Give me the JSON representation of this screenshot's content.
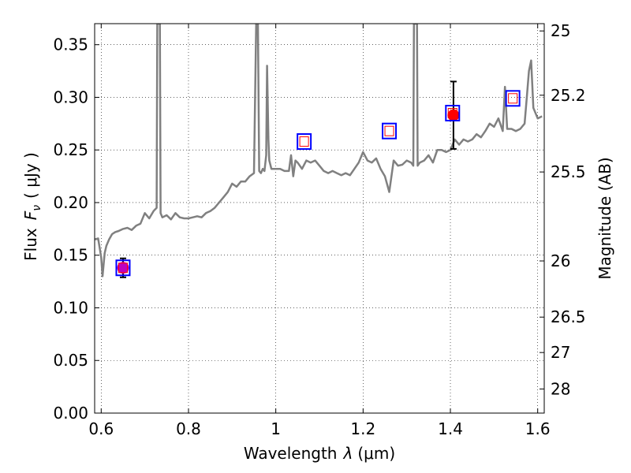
{
  "chart_data": {
    "type": "line",
    "xlabel_text": "Wavelength",
    "xlabel_math": "λ",
    "xlabel_unit": "(μm)",
    "ylabel_text": "Flux",
    "ylabel_math": "F",
    "ylabel_sub": "ν",
    "ylabel_unit": "( μJy )",
    "y2label": "Magnitude (AB)",
    "xlim": [
      0.585,
      1.615
    ],
    "ylim": [
      0.0,
      0.37
    ],
    "grid": true,
    "grid_style": "dotted",
    "x_ticks": [
      0.6,
      0.8,
      1.0,
      1.2,
      1.4,
      1.6
    ],
    "x_tick_labels": [
      "0.6",
      "0.8",
      "1",
      "1.2",
      "1.4",
      "1.6"
    ],
    "y_ticks": [
      0.0,
      0.05,
      0.1,
      0.15,
      0.2,
      0.25,
      0.3,
      0.35
    ],
    "y_tick_labels": [
      "0.00",
      "0.05",
      "0.10",
      "0.15",
      "0.20",
      "0.25",
      "0.30",
      "0.35"
    ],
    "y2_ticks": [
      25,
      25.2,
      25.5,
      26,
      26.5,
      27,
      28
    ],
    "y2_tick_labels": [
      "25",
      "25.2",
      "25.5",
      "26",
      "26.5",
      "27",
      "28"
    ],
    "colors": {
      "spectrum": "#808080",
      "model_marker_edge": "#0000ff",
      "inner_marker_edge": "#ff0000",
      "photometry_red": "#ff0000",
      "photometry_magenta": "#bf00bf",
      "errorbar": "#000000"
    },
    "spectrum": {
      "name": "",
      "x": [
        0.585,
        0.593,
        0.6,
        0.603,
        0.608,
        0.612,
        0.618,
        0.625,
        0.632,
        0.64,
        0.65,
        0.66,
        0.67,
        0.68,
        0.69,
        0.7,
        0.71,
        0.72,
        0.727,
        0.7285,
        0.729,
        0.733,
        0.7345,
        0.736,
        0.74,
        0.75,
        0.76,
        0.77,
        0.78,
        0.79,
        0.8,
        0.81,
        0.82,
        0.83,
        0.84,
        0.85,
        0.86,
        0.87,
        0.88,
        0.89,
        0.9,
        0.91,
        0.92,
        0.93,
        0.94,
        0.95,
        0.955,
        0.956,
        0.958,
        0.959,
        0.962,
        0.966,
        0.97,
        0.974,
        0.978,
        0.98,
        0.983,
        0.985,
        0.99,
        1.0,
        1.01,
        1.02,
        1.03,
        1.035,
        1.04,
        1.045,
        1.05,
        1.06,
        1.07,
        1.08,
        1.09,
        1.1,
        1.11,
        1.12,
        1.13,
        1.14,
        1.15,
        1.16,
        1.17,
        1.18,
        1.19,
        1.2,
        1.21,
        1.22,
        1.23,
        1.24,
        1.25,
        1.26,
        1.27,
        1.28,
        1.29,
        1.3,
        1.31,
        1.315,
        1.3165,
        1.317,
        1.322,
        1.3235,
        1.325,
        1.33,
        1.34,
        1.35,
        1.36,
        1.37,
        1.38,
        1.39,
        1.4,
        1.41,
        1.42,
        1.43,
        1.44,
        1.45,
        1.46,
        1.47,
        1.48,
        1.49,
        1.5,
        1.51,
        1.52,
        1.525,
        1.53,
        1.54,
        1.55,
        1.56,
        1.57,
        1.575,
        1.58,
        1.585,
        1.59,
        1.6,
        1.61
      ],
      "y": [
        0.165,
        0.166,
        0.148,
        0.13,
        0.152,
        0.159,
        0.165,
        0.17,
        0.172,
        0.173,
        0.175,
        0.176,
        0.174,
        0.178,
        0.18,
        0.19,
        0.185,
        0.192,
        0.195,
        0.37,
        0.37,
        0.37,
        0.37,
        0.19,
        0.186,
        0.188,
        0.184,
        0.19,
        0.186,
        0.185,
        0.185,
        0.186,
        0.187,
        0.186,
        0.19,
        0.192,
        0.195,
        0.2,
        0.205,
        0.21,
        0.218,
        0.215,
        0.22,
        0.22,
        0.225,
        0.228,
        0.37,
        0.37,
        0.37,
        0.37,
        0.23,
        0.228,
        0.232,
        0.23,
        0.245,
        0.33,
        0.26,
        0.24,
        0.232,
        0.232,
        0.232,
        0.23,
        0.23,
        0.245,
        0.225,
        0.24,
        0.238,
        0.232,
        0.24,
        0.238,
        0.24,
        0.235,
        0.23,
        0.228,
        0.23,
        0.228,
        0.226,
        0.228,
        0.226,
        0.232,
        0.238,
        0.248,
        0.24,
        0.238,
        0.242,
        0.232,
        0.225,
        0.21,
        0.24,
        0.235,
        0.236,
        0.24,
        0.238,
        0.235,
        0.37,
        0.37,
        0.37,
        0.37,
        0.235,
        0.238,
        0.24,
        0.245,
        0.238,
        0.25,
        0.25,
        0.248,
        0.25,
        0.26,
        0.255,
        0.26,
        0.258,
        0.26,
        0.265,
        0.262,
        0.268,
        0.275,
        0.272,
        0.28,
        0.268,
        0.31,
        0.27,
        0.27,
        0.268,
        0.27,
        0.275,
        0.3,
        0.325,
        0.335,
        0.29,
        0.28,
        0.282
      ]
    },
    "model_points": {
      "name": "",
      "x": [
        0.65,
        1.065,
        1.26,
        1.405,
        1.543
      ],
      "y": [
        0.138,
        0.258,
        0.268,
        0.285,
        0.299
      ]
    },
    "photometry": [
      {
        "name": "",
        "x": 0.65,
        "y": 0.138,
        "yerr": 0.009,
        "color": "#bf00bf"
      },
      {
        "name": "",
        "x": 1.407,
        "y": 0.283,
        "yerr": 0.032,
        "color": "#ff0000"
      }
    ]
  }
}
